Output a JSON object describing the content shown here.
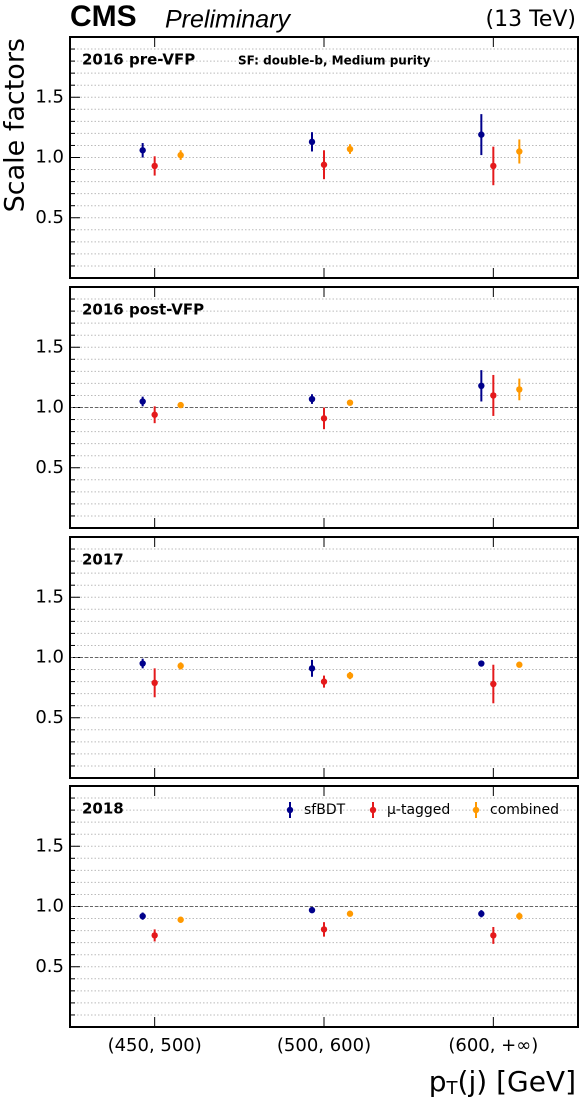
{
  "chart_data": {
    "type": "errorbar",
    "header": {
      "experiment": "CMS",
      "status": "Preliminary",
      "energy": "(13 TeV)"
    },
    "ylabel": "Scale factors",
    "xlabel": {
      "base": "p",
      "sub": "T",
      "rest": "(j) [GeV]"
    },
    "categories": [
      "(450, 500)",
      "(500, 600)",
      "(600, +∞)"
    ],
    "ylim": [
      0,
      2
    ],
    "yticks": [
      {
        "value": 0.5,
        "label": "0.5"
      },
      {
        "value": 1.0,
        "label": "1.0"
      },
      {
        "value": 1.5,
        "label": "1.5"
      }
    ],
    "minor_yticks": [
      0.1,
      0.2,
      0.3,
      0.4,
      0.6,
      0.7,
      0.8,
      0.9,
      1.1,
      1.2,
      1.3,
      1.4,
      1.6,
      1.7,
      1.8,
      1.9
    ],
    "legend": "upper right",
    "series": [
      {
        "name": "sfBDT",
        "color": "#00008b"
      },
      {
        "name": "μ-tagged",
        "color": "#e41a1c"
      },
      {
        "name": "combined",
        "color": "#ff9900"
      }
    ],
    "panels": [
      {
        "label": "2016 pre-VFP",
        "annotation": "SF: double-b,  Medium purity",
        "series": [
          {
            "values": [
              1.06,
              1.13,
              1.19
            ],
            "errors": [
              0.06,
              0.08,
              0.17
            ]
          },
          {
            "values": [
              0.93,
              0.94,
              0.93
            ],
            "errors": [
              0.08,
              0.12,
              0.16
            ]
          },
          {
            "values": [
              1.02,
              1.07,
              1.05
            ],
            "errors": [
              0.04,
              0.04,
              0.1
            ]
          }
        ]
      },
      {
        "label": "2016 post-VFP",
        "reference_line": 1.0,
        "series": [
          {
            "values": [
              1.05,
              1.07,
              1.18
            ],
            "errors": [
              0.04,
              0.04,
              0.13
            ]
          },
          {
            "values": [
              0.94,
              0.91,
              1.1
            ],
            "errors": [
              0.07,
              0.09,
              0.17
            ]
          },
          {
            "values": [
              1.02,
              1.04,
              1.15
            ],
            "errors": [
              0.02,
              0.02,
              0.09
            ]
          }
        ]
      },
      {
        "label": "2017",
        "reference_line": 1.0,
        "series": [
          {
            "values": [
              0.95,
              0.91,
              0.95
            ],
            "errors": [
              0.04,
              0.07,
              0.02
            ]
          },
          {
            "values": [
              0.79,
              0.8,
              0.78
            ],
            "errors": [
              0.12,
              0.05,
              0.16
            ]
          },
          {
            "values": [
              0.93,
              0.85,
              0.94
            ],
            "errors": [
              0.03,
              0.03,
              0.02
            ]
          }
        ]
      },
      {
        "label": "2018",
        "reference_line": 1.0,
        "series": [
          {
            "values": [
              0.92,
              0.97,
              0.94
            ],
            "errors": [
              0.03,
              0.02,
              0.03
            ]
          },
          {
            "values": [
              0.76,
              0.81,
              0.76
            ],
            "errors": [
              0.05,
              0.06,
              0.07
            ]
          },
          {
            "values": [
              0.89,
              0.94,
              0.92
            ],
            "errors": [
              0.02,
              0.02,
              0.03
            ]
          }
        ]
      }
    ]
  }
}
